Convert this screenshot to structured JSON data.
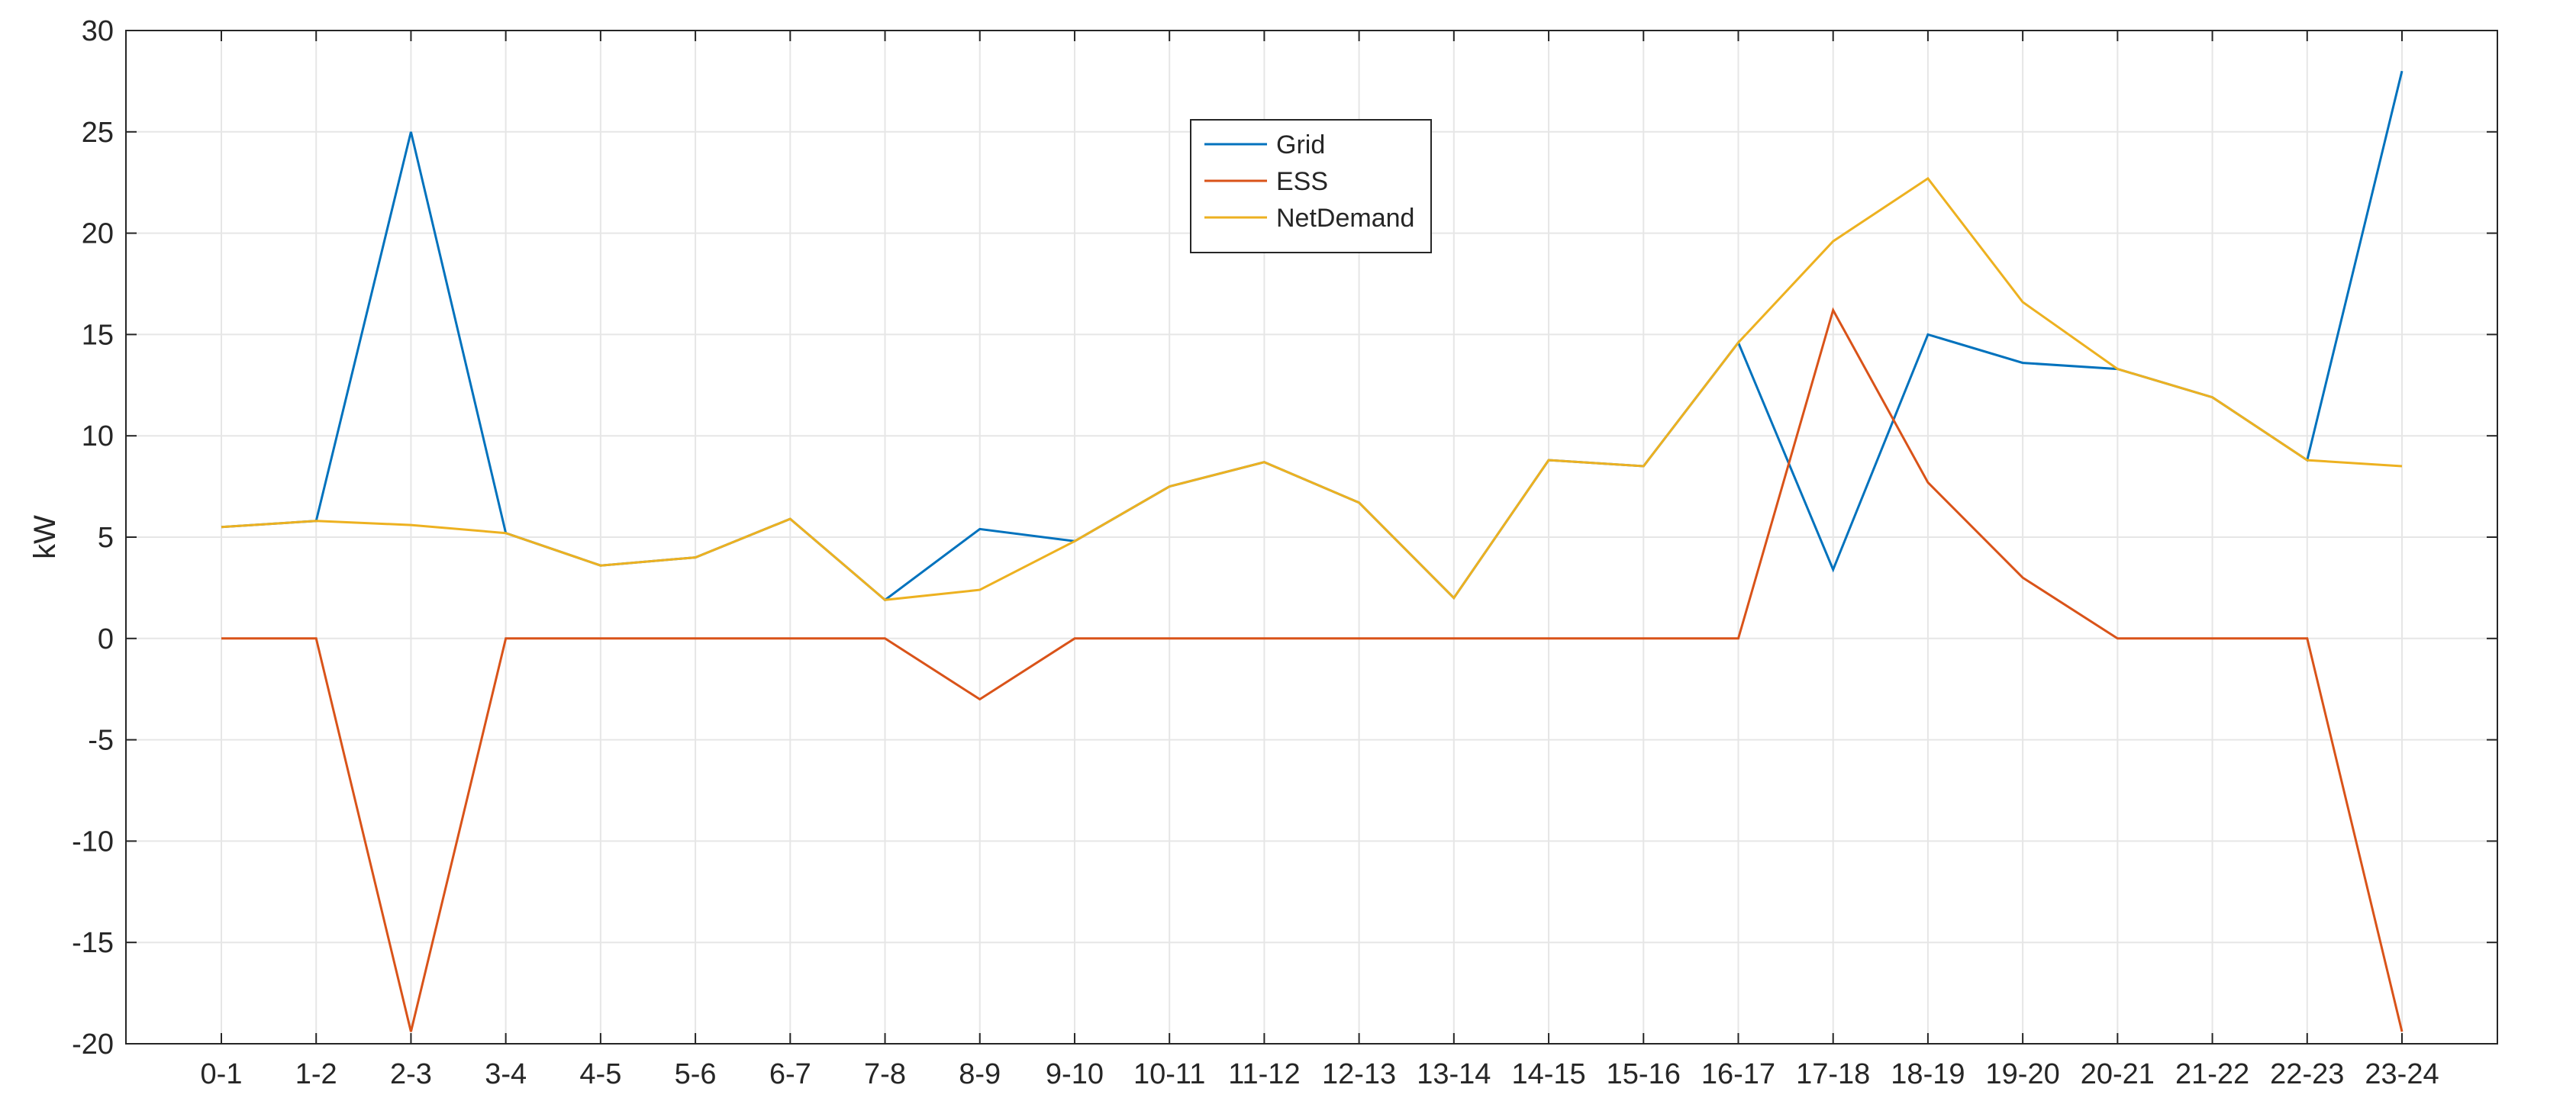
{
  "chart_data": {
    "type": "line",
    "title": "",
    "xlabel": "",
    "ylabel": "kW",
    "categories": [
      "0-1",
      "1-2",
      "2-3",
      "3-4",
      "4-5",
      "5-6",
      "6-7",
      "7-8",
      "8-9",
      "9-10",
      "10-11",
      "11-12",
      "12-13",
      "13-14",
      "14-15",
      "15-16",
      "16-17",
      "17-18",
      "18-19",
      "19-20",
      "20-21",
      "21-22",
      "22-23",
      "23-24"
    ],
    "ylim": [
      -20,
      30
    ],
    "yticks": [
      -20,
      -15,
      -10,
      -5,
      0,
      5,
      10,
      15,
      20,
      25,
      30
    ],
    "grid": true,
    "legend_position": "top-center",
    "series": [
      {
        "name": "Grid",
        "color": "#0072BD",
        "values": [
          5.5,
          5.8,
          25.0,
          5.2,
          3.6,
          4.0,
          5.9,
          1.9,
          5.4,
          4.8,
          7.5,
          8.7,
          6.7,
          2.0,
          8.8,
          8.5,
          14.6,
          3.4,
          15.0,
          13.6,
          13.3,
          11.9,
          8.8,
          28.0
        ]
      },
      {
        "name": "ESS",
        "color": "#D95319",
        "values": [
          0,
          0,
          -19.4,
          0,
          0,
          0,
          0,
          0,
          -3.0,
          0,
          0,
          0,
          0,
          0,
          0,
          0,
          0,
          16.2,
          7.7,
          3.0,
          0,
          0,
          0,
          -19.4
        ]
      },
      {
        "name": "NetDemand",
        "color": "#EDB120",
        "values": [
          5.5,
          5.8,
          5.6,
          5.2,
          3.6,
          4.0,
          5.9,
          1.9,
          2.4,
          4.8,
          7.5,
          8.7,
          6.7,
          2.0,
          8.8,
          8.5,
          14.6,
          19.6,
          22.7,
          16.6,
          13.3,
          11.9,
          8.8,
          8.5
        ]
      }
    ]
  }
}
